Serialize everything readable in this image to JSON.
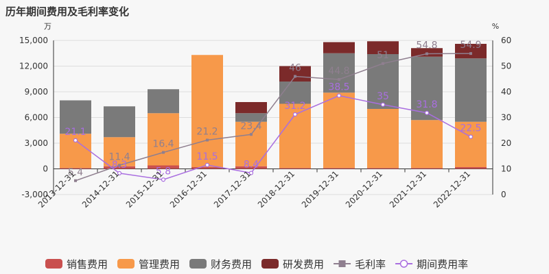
{
  "chart_data": {
    "type": "bar",
    "title": "历年期间费用及毛利率变化",
    "left_unit": "万",
    "right_unit": "%",
    "categories": [
      "2013-12-31",
      "2014-12-31",
      "2015-12-31",
      "2016-12-31",
      "2017-12-31",
      "2018-12-31",
      "2019-12-31",
      "2020-12-31",
      "2021-12-31",
      "2022-12-31"
    ],
    "y_left": {
      "min": -3000,
      "max": 15000,
      "ticks": [
        -3000,
        0,
        3000,
        6000,
        9000,
        12000,
        15000
      ],
      "tick_labels": [
        "-3,000",
        "0",
        "3,000",
        "6,000",
        "9,000",
        "12,000",
        "15,000"
      ]
    },
    "y_right": {
      "min": 0,
      "max": 60,
      "ticks": [
        0,
        10,
        20,
        30,
        40,
        50,
        60
      ],
      "tick_labels": [
        "0",
        "10",
        "20",
        "30",
        "40",
        "50",
        "60"
      ]
    },
    "bar_series": [
      {
        "name": "销售费用",
        "color": "#c9504f",
        "values": [
          100,
          300,
          400,
          200,
          300,
          100,
          100,
          100,
          100,
          200
        ]
      },
      {
        "name": "管理费用",
        "color": "#f7994a",
        "values": [
          4000,
          3400,
          6100,
          13100,
          5200,
          7500,
          8800,
          6900,
          5600,
          5300
        ]
      },
      {
        "name": "财务费用",
        "color": "#7a7a7a",
        "values": [
          3900,
          3600,
          2800,
          0,
          1000,
          2600,
          4600,
          6400,
          7400,
          7400
        ]
      },
      {
        "name": "研发费用",
        "color": "#7b2a2a",
        "values": [
          0,
          0,
          0,
          0,
          1300,
          1800,
          1300,
          1500,
          1000,
          1700
        ]
      }
    ],
    "line_series": [
      {
        "name": "毛利率",
        "color": "#8f7f8f",
        "marker": "square",
        "values": [
          5.4,
          11.4,
          16.4,
          21.2,
          23.4,
          46,
          44.8,
          51,
          54.8,
          54.9
        ],
        "labels": [
          "5.4",
          "11.4",
          "16.4",
          "21.2",
          "23.4",
          "46",
          "44.8",
          "51",
          "54.8",
          "54.9"
        ]
      },
      {
        "name": "期间费用率",
        "color": "#a96ee0",
        "marker": "circle",
        "values": [
          21.1,
          8.3,
          5.8,
          11.5,
          8.4,
          31.2,
          38.5,
          35,
          31.8,
          22.5
        ],
        "labels": [
          "21.1",
          "8.3",
          "5.8",
          "11.5",
          "8.4",
          "31.2",
          "38.5",
          "35",
          "31.8",
          "22.5"
        ]
      }
    ],
    "grid": true,
    "legend_position": "bottom"
  }
}
